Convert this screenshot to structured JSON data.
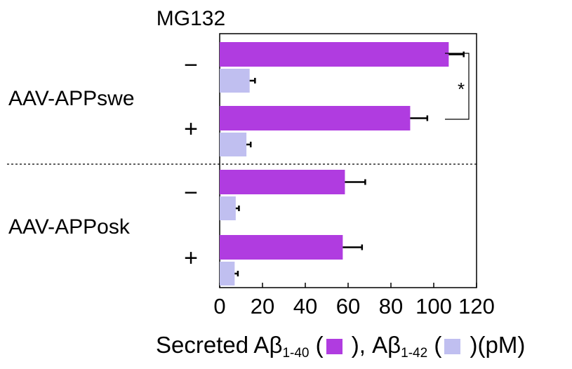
{
  "chart_data": {
    "type": "bar",
    "orientation": "horizontal",
    "header": "MG132",
    "groups": [
      {
        "label": "AAV-APPswe",
        "rows": [
          {
            "mg132": "−",
            "abeta40": 107,
            "abeta40_err": 7,
            "abeta42": 14,
            "abeta42_err": 2.5
          },
          {
            "mg132": "+",
            "abeta40": 89,
            "abeta40_err": 8,
            "abeta42": 12.5,
            "abeta42_err": 2
          }
        ]
      },
      {
        "label": "AAV-APPosk",
        "rows": [
          {
            "mg132": "−",
            "abeta40": 58.5,
            "abeta40_err": 9.5,
            "abeta42": 7.5,
            "abeta42_err": 1.5
          },
          {
            "mg132": "+",
            "abeta40": 57.5,
            "abeta40_err": 9,
            "abeta42": 7,
            "abeta42_err": 1.5
          }
        ]
      }
    ],
    "series": [
      {
        "key": "abeta40",
        "color": "#b03ce0"
      },
      {
        "key": "abeta42",
        "color": "#c0bff0"
      }
    ],
    "xlim": [
      0,
      120
    ],
    "xticks": [
      "0",
      "20",
      "40",
      "60",
      "80",
      "100",
      "120"
    ],
    "xlabel": {
      "prefix": "Secreted A",
      "beta": "β",
      "sub1": "1-40",
      "sub2": "1-42",
      "mid1": " (",
      "mid2": " ), A",
      "mid3": " (",
      "suffix": " )(pM)"
    },
    "annotation": "*"
  }
}
